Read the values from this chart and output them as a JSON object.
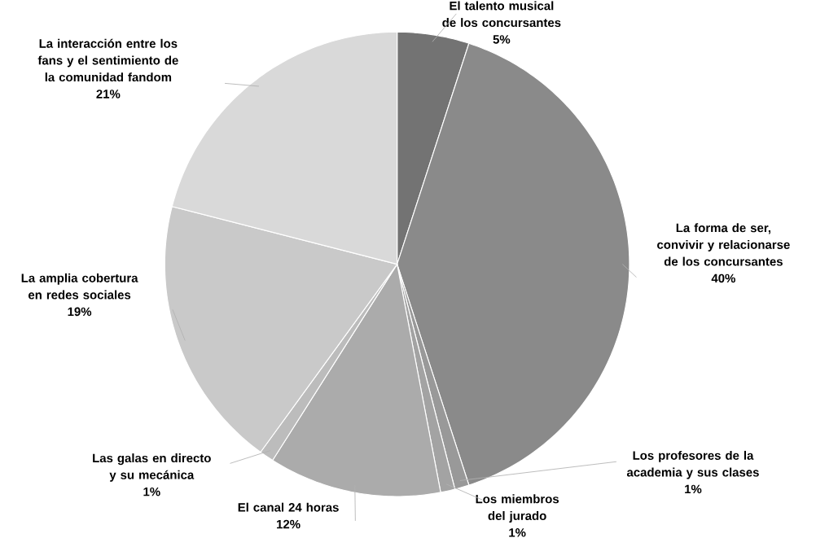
{
  "chart_data": {
    "type": "pie",
    "categories": [
      "El talento musical de los concursantes",
      "La forma de ser, convivir y relacionarse de los concursantes",
      "Los profesores de la academia y sus clases",
      "Los miembros del jurado",
      "El canal 24 horas",
      "Las galas en directo y su mecánica",
      "La amplia cobertura en redes sociales",
      "La interacción entre los fans y el sentimiento de la comunidad fandom"
    ],
    "values": [
      5,
      40,
      1,
      1,
      12,
      1,
      19,
      21
    ],
    "value_labels": [
      "5%",
      "40%",
      "1%",
      "1%",
      "12%",
      "1%",
      "19%",
      "21%"
    ],
    "colors": [
      "#737373",
      "#8a8a8a",
      "#999999",
      "#a3a3a3",
      "#ababab",
      "#bcbcbc",
      "#c9c9c9",
      "#d9d9d9"
    ]
  }
}
